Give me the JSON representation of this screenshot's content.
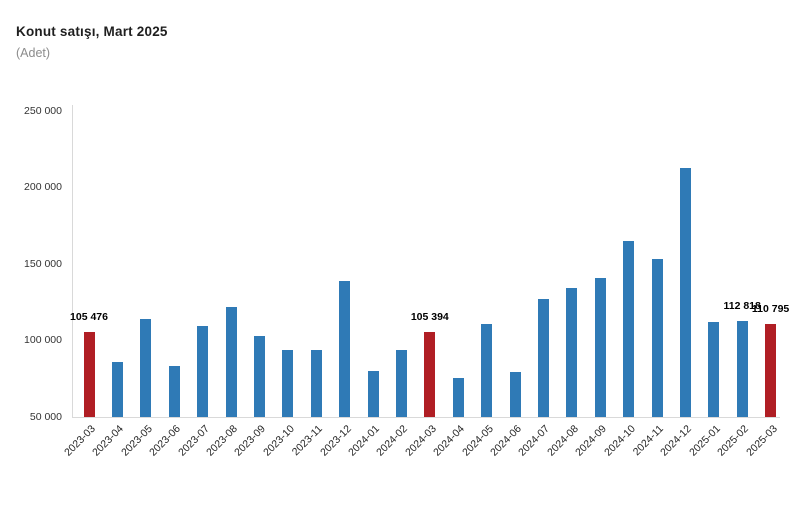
{
  "title": "Konut satışı, Mart 2025",
  "subtitle": "(Adet)",
  "colors": {
    "bar_default": "#2F7AB6",
    "bar_highlight": "#B01E24",
    "axis_line": "#d9d9d9"
  },
  "chart_data": {
    "type": "bar",
    "title": "Konut satışı, Mart 2025",
    "subtitle": "(Adet)",
    "xlabel": "",
    "ylabel": "",
    "ylim": [
      50000,
      250000
    ],
    "grid": false,
    "legend": null,
    "ytick_labels": [
      "250 000",
      "200 000",
      "150 000",
      "100 000",
      "50 000"
    ],
    "categories": [
      "2023-03",
      "2023-04",
      "2023-05",
      "2023-06",
      "2023-07",
      "2023-08",
      "2023-09",
      "2023-10",
      "2023-11",
      "2023-12",
      "2024-01",
      "2024-02",
      "2024-03",
      "2024-04",
      "2024-05",
      "2024-06",
      "2024-07",
      "2024-08",
      "2024-09",
      "2024-10",
      "2024-11",
      "2024-12",
      "2025-01",
      "2025-02",
      "2025-03"
    ],
    "values": [
      105476,
      85652,
      113784,
      83636,
      109548,
      122091,
      102656,
      93761,
      93514,
      138577,
      80308,
      93902,
      105394,
      75569,
      110588,
      79313,
      127088,
      134155,
      140919,
      165138,
      153014,
      212637,
      112173,
      112818,
      110795
    ],
    "highlighted_indices": [
      0,
      12,
      24
    ],
    "point_labels": {
      "0": "105 476",
      "12": "105 394",
      "23": "112 818",
      "24": "110 795"
    }
  }
}
